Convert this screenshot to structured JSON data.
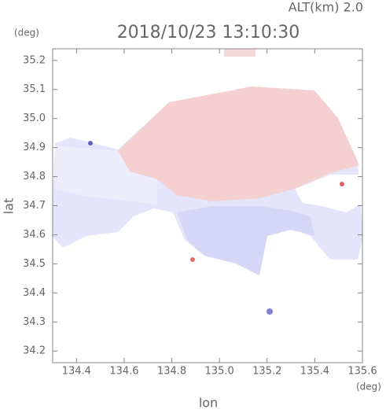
{
  "chart_data": {
    "type": "map",
    "title": "2018/10/23 13:10:30",
    "subtitle": "ALT(km) 2.0",
    "x_label": "lon",
    "y_label": "lat",
    "x_unit": "(deg)",
    "y_unit": "(deg)",
    "xlim": [
      134.3,
      135.6
    ],
    "xticks": [
      134.4,
      134.6,
      134.8,
      {
        "value": 135,
        "label": "135.0"
      },
      135.2,
      135.4,
      135.6
    ],
    "ylim": [
      34.16,
      35.24
    ],
    "yticks": [
      34.2,
      34.3,
      34.4,
      34.5,
      34.6,
      34.7,
      34.8,
      34.9,
      {
        "value": 35,
        "label": "35.0"
      },
      35.1,
      35.2
    ]
  }
}
